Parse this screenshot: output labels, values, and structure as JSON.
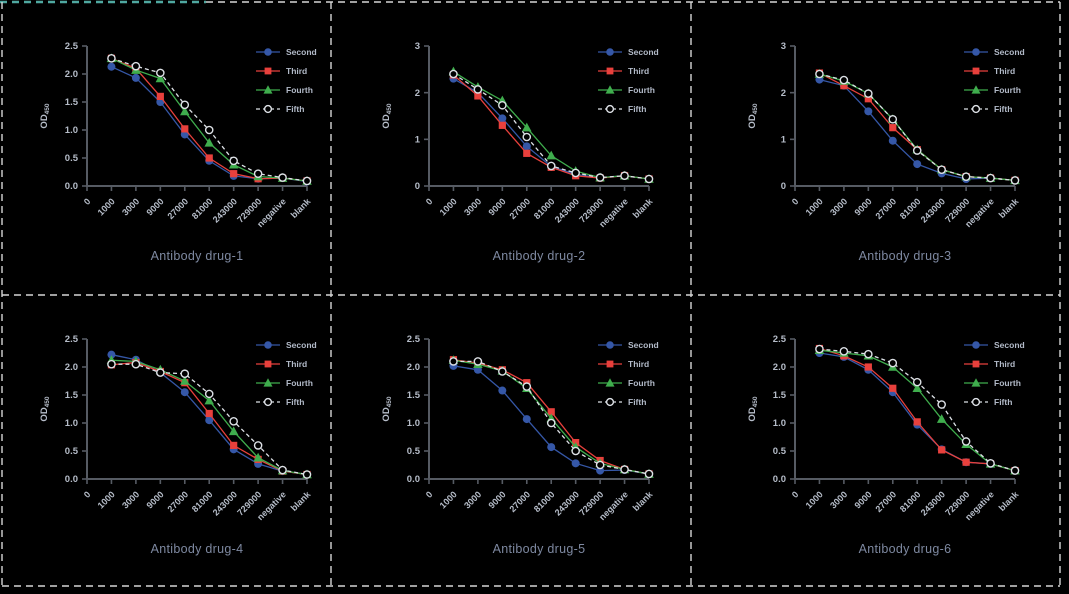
{
  "figure": {
    "background_color": "#000000",
    "grid_border_color": "#d6d6d6",
    "accent_line_color": "#4fa8a0",
    "axis_color": "#565b63",
    "tick_label_color": "#b6bdc9",
    "title_color": "#7e89a1",
    "legend_text_color": "#b2bac8",
    "open_marker_fill": "#000000"
  },
  "legend_labels": [
    "Second",
    "Third",
    "Fourth",
    "Fifth"
  ],
  "chart_data": [
    {
      "type": "line",
      "title": "Antibody drug-1",
      "ylabel_main": "OD",
      "ylabel_sub": "450",
      "ylim": [
        0,
        2.5
      ],
      "ytick_labels": [
        "0.0",
        "0.5",
        "1.0",
        "1.5",
        "2.0",
        "2.5"
      ],
      "x_tick_labels": [
        "0",
        "1000",
        "3000",
        "9000",
        "27000",
        "81000",
        "243000",
        "729000",
        "negative",
        "blank"
      ],
      "data_start_tick": 1,
      "legend_position": "top-right",
      "series": [
        {
          "name": "Second",
          "marker": "circle",
          "line_style": "solid",
          "color": "#3557a7",
          "values": [
            2.13,
            1.93,
            1.5,
            0.92,
            0.45,
            0.18,
            0.13,
            0.14,
            0.08
          ]
        },
        {
          "name": "Third",
          "marker": "square",
          "line_style": "solid",
          "color": "#e8403c",
          "values": [
            2.28,
            2.1,
            1.6,
            1.02,
            0.5,
            0.22,
            0.13,
            0.14,
            0.09
          ]
        },
        {
          "name": "Fourth",
          "marker": "triangle",
          "line_style": "solid",
          "color": "#3fad4d",
          "values": [
            2.28,
            2.07,
            1.92,
            1.33,
            0.77,
            0.38,
            0.17,
            0.14,
            0.09
          ]
        },
        {
          "name": "Fifth",
          "marker": "open-circle",
          "line_style": "dashed",
          "color": "#dde1e6",
          "values": [
            2.28,
            2.14,
            2.02,
            1.45,
            1.0,
            0.45,
            0.22,
            0.15,
            0.09
          ]
        }
      ]
    },
    {
      "type": "line",
      "title": "Antibody drug-2",
      "ylabel_main": "OD",
      "ylabel_sub": "450",
      "ylim": [
        0,
        3
      ],
      "ytick_labels": [
        "0",
        "1",
        "2",
        "3"
      ],
      "x_tick_labels": [
        "0",
        "1000",
        "3000",
        "9000",
        "27000",
        "81000",
        "243000",
        "729000",
        "negative",
        "blank"
      ],
      "data_start_tick": 1,
      "legend_position": "top-right",
      "series": [
        {
          "name": "Second",
          "marker": "circle",
          "line_style": "solid",
          "color": "#3557a7",
          "values": [
            2.3,
            2.0,
            1.45,
            0.85,
            0.42,
            0.25,
            0.18,
            0.22,
            0.15
          ]
        },
        {
          "name": "Third",
          "marker": "square",
          "line_style": "solid",
          "color": "#e8403c",
          "values": [
            2.38,
            1.93,
            1.3,
            0.7,
            0.4,
            0.22,
            0.17,
            0.22,
            0.15
          ]
        },
        {
          "name": "Fourth",
          "marker": "triangle",
          "line_style": "solid",
          "color": "#3fad4d",
          "values": [
            2.45,
            2.12,
            1.83,
            1.25,
            0.65,
            0.32,
            0.18,
            0.22,
            0.15
          ]
        },
        {
          "name": "Fifth",
          "marker": "open-circle",
          "line_style": "dashed",
          "color": "#dde1e6",
          "values": [
            2.4,
            2.07,
            1.73,
            1.05,
            0.43,
            0.28,
            0.18,
            0.22,
            0.15
          ]
        }
      ]
    },
    {
      "type": "line",
      "title": "Antibody drug-3",
      "ylabel_main": "OD",
      "ylabel_sub": "450",
      "ylim": [
        0,
        3
      ],
      "ytick_labels": [
        "0",
        "1",
        "2",
        "3"
      ],
      "x_tick_labels": [
        "0",
        "1000",
        "3000",
        "9000",
        "27000",
        "81000",
        "243000",
        "729000",
        "negative",
        "blank"
      ],
      "data_start_tick": 1,
      "legend_position": "top-right",
      "series": [
        {
          "name": "Second",
          "marker": "circle",
          "line_style": "solid",
          "color": "#3557a7",
          "values": [
            2.28,
            2.15,
            1.6,
            0.97,
            0.47,
            0.27,
            0.15,
            0.17,
            0.12
          ]
        },
        {
          "name": "Third",
          "marker": "square",
          "line_style": "solid",
          "color": "#e8403c",
          "values": [
            2.42,
            2.15,
            1.87,
            1.25,
            0.78,
            0.35,
            0.2,
            0.17,
            0.12
          ]
        },
        {
          "name": "Fourth",
          "marker": "triangle",
          "line_style": "solid",
          "color": "#3fad4d",
          "values": [
            2.4,
            2.25,
            1.98,
            1.43,
            0.78,
            0.35,
            0.2,
            0.17,
            0.12
          ]
        },
        {
          "name": "Fifth",
          "marker": "open-circle",
          "line_style": "dashed",
          "color": "#dde1e6",
          "values": [
            2.4,
            2.27,
            1.98,
            1.43,
            0.76,
            0.35,
            0.2,
            0.17,
            0.12
          ]
        }
      ]
    },
    {
      "type": "line",
      "title": "Antibody drug-4",
      "ylabel_main": "OD",
      "ylabel_sub": "450",
      "ylim": [
        0,
        2.5
      ],
      "ytick_labels": [
        "0.0",
        "0.5",
        "1.0",
        "1.5",
        "2.0",
        "2.5"
      ],
      "x_tick_labels": [
        "0",
        "1000",
        "3000",
        "9000",
        "27000",
        "81000",
        "243000",
        "729000",
        "negative",
        "blank"
      ],
      "data_start_tick": 1,
      "legend_position": "top-right",
      "series": [
        {
          "name": "Second",
          "marker": "circle",
          "line_style": "solid",
          "color": "#3557a7",
          "values": [
            2.22,
            2.13,
            1.9,
            1.55,
            1.05,
            0.53,
            0.27,
            0.14,
            0.08
          ]
        },
        {
          "name": "Third",
          "marker": "square",
          "line_style": "solid",
          "color": "#e8403c",
          "values": [
            2.04,
            2.08,
            1.92,
            1.72,
            1.17,
            0.6,
            0.35,
            0.14,
            0.08
          ]
        },
        {
          "name": "Fourth",
          "marker": "triangle",
          "line_style": "solid",
          "color": "#3fad4d",
          "values": [
            2.12,
            2.1,
            1.95,
            1.75,
            1.4,
            0.85,
            0.38,
            0.15,
            0.08
          ]
        },
        {
          "name": "Fifth",
          "marker": "open-circle",
          "line_style": "dashed",
          "color": "#dde1e6",
          "values": [
            2.05,
            2.05,
            1.9,
            1.88,
            1.52,
            1.03,
            0.6,
            0.16,
            0.08
          ]
        }
      ]
    },
    {
      "type": "line",
      "title": "Antibody drug-5",
      "ylabel_main": "OD",
      "ylabel_sub": "450",
      "ylim": [
        0,
        2.5
      ],
      "ytick_labels": [
        "0.0",
        "0.5",
        "1.0",
        "1.5",
        "2.0",
        "2.5"
      ],
      "x_tick_labels": [
        "0",
        "1000",
        "3000",
        "9000",
        "27000",
        "81000",
        "243000",
        "729000",
        "negative",
        "blank"
      ],
      "data_start_tick": 1,
      "legend_position": "top-right",
      "series": [
        {
          "name": "Second",
          "marker": "circle",
          "line_style": "solid",
          "color": "#3557a7",
          "values": [
            2.02,
            1.95,
            1.58,
            1.07,
            0.57,
            0.28,
            0.15,
            0.16,
            0.09
          ]
        },
        {
          "name": "Third",
          "marker": "square",
          "line_style": "solid",
          "color": "#e8403c",
          "values": [
            2.13,
            2.07,
            1.95,
            1.72,
            1.2,
            0.65,
            0.33,
            0.17,
            0.09
          ]
        },
        {
          "name": "Fourth",
          "marker": "triangle",
          "line_style": "solid",
          "color": "#3fad4d",
          "values": [
            2.12,
            2.05,
            1.93,
            1.62,
            1.08,
            0.57,
            0.28,
            0.17,
            0.09
          ]
        },
        {
          "name": "Fifth",
          "marker": "open-circle",
          "line_style": "dashed",
          "color": "#dde1e6",
          "values": [
            2.1,
            2.1,
            1.92,
            1.65,
            1.0,
            0.5,
            0.25,
            0.17,
            0.09
          ]
        }
      ]
    },
    {
      "type": "line",
      "title": "Antibody drug-6",
      "ylabel_main": "OD",
      "ylabel_sub": "450",
      "ylim": [
        0,
        2.5
      ],
      "ytick_labels": [
        "0.0",
        "0.5",
        "1.0",
        "1.5",
        "2.0",
        "2.5"
      ],
      "x_tick_labels": [
        "0",
        "1000",
        "3000",
        "9000",
        "27000",
        "81000",
        "243000",
        "729000",
        "negative",
        "blank"
      ],
      "data_start_tick": 1,
      "legend_position": "top-right",
      "series": [
        {
          "name": "Second",
          "marker": "circle",
          "line_style": "solid",
          "color": "#3557a7",
          "values": [
            2.25,
            2.18,
            1.95,
            1.55,
            0.97,
            0.53,
            0.3,
            0.27,
            0.15
          ]
        },
        {
          "name": "Third",
          "marker": "square",
          "line_style": "solid",
          "color": "#e8403c",
          "values": [
            2.33,
            2.2,
            2.0,
            1.62,
            1.02,
            0.52,
            0.3,
            0.27,
            0.15
          ]
        },
        {
          "name": "Fourth",
          "marker": "triangle",
          "line_style": "solid",
          "color": "#3fad4d",
          "values": [
            2.3,
            2.25,
            2.2,
            2.0,
            1.62,
            1.07,
            0.62,
            0.27,
            0.15
          ]
        },
        {
          "name": "Fifth",
          "marker": "open-circle",
          "line_style": "dashed",
          "color": "#dde1e6",
          "values": [
            2.32,
            2.28,
            2.23,
            2.07,
            1.73,
            1.33,
            0.67,
            0.28,
            0.15
          ]
        }
      ]
    }
  ]
}
